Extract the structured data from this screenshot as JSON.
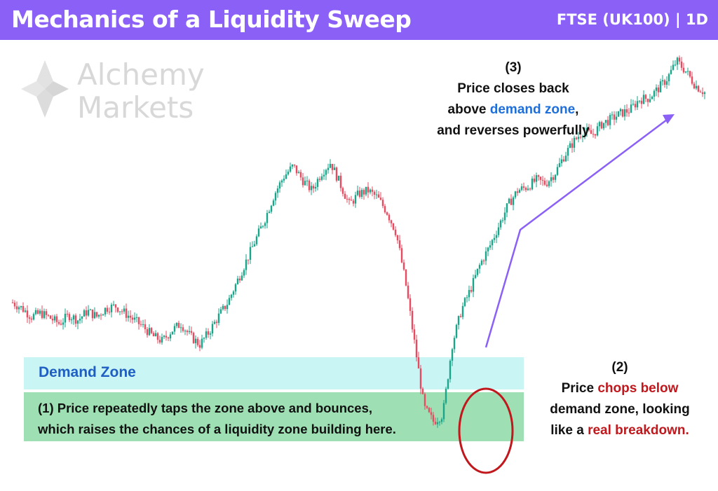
{
  "header": {
    "title": "Mechanics of a Liquidity Sweep",
    "ticker": "FTSE  (UK100) | 1D"
  },
  "watermark": {
    "line1": "Alchemy",
    "line2": "Markets",
    "icon": "diamond-star-logo-icon"
  },
  "colors": {
    "header_bg": "#8a60f7",
    "bull": "#1aa58a",
    "bear": "#e84a5f",
    "demand_zone": "#c9f5f5",
    "liquidity_zone": "#9ee0b4",
    "arrow": "#8a60f7",
    "circle": "#c0181c"
  },
  "annotations": {
    "step3": {
      "number": "(3)",
      "line1": "Price closes back",
      "line2_pre": "above ",
      "line2_hl": "demand zone",
      "line2_post": ",",
      "line3": "and reverses powerfully"
    },
    "step2": {
      "number": "(2)",
      "line1_pre": "Price ",
      "line1_hl": "chops below",
      "line2": "demand zone, looking",
      "line3_pre": "like a ",
      "line3_hl": "real breakdown."
    },
    "step1": {
      "line1": "(1) Price repeatedly taps the zone above and bounces,",
      "line2": "which raises the chances of a liquidity zone building here."
    },
    "zone_label": "Demand Zone"
  },
  "chart_data": {
    "type": "candlestick",
    "title": "Mechanics of a Liquidity Sweep",
    "instrument": "FTSE  (UK100) | 1D",
    "zones": [
      {
        "name": "Demand Zone",
        "role": "demand"
      },
      {
        "name": "liquidity zone",
        "role": "liquidity"
      }
    ],
    "path_keypoints": [
      0,
      -8,
      -20,
      -15,
      -22,
      -30,
      -18,
      -25,
      -12,
      -20,
      -8,
      -5,
      -15,
      -25,
      -35,
      -48,
      -55,
      -40,
      -30,
      -48,
      -60,
      -42,
      -20,
      0,
      30,
      60,
      90,
      120,
      155,
      180,
      195,
      175,
      160,
      185,
      200,
      170,
      140,
      155,
      160,
      150,
      130,
      100,
      30,
      -60,
      -150,
      -170,
      -160,
      -60,
      -10,
      20,
      55,
      80,
      110,
      140,
      160,
      165,
      175,
      170,
      185,
      210,
      230,
      245,
      240,
      255,
      262,
      270,
      275,
      290,
      292,
      305,
      320,
      345,
      330,
      310,
      300
    ],
    "annotations": [
      "(1)",
      "(2)",
      "(3)"
    ]
  }
}
